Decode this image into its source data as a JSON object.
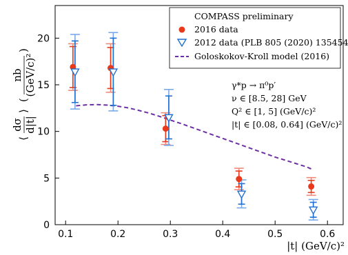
{
  "chart_data": {
    "type": "scatter",
    "xlabel": "|t| (GeV/c)²",
    "ylabel": "⟨dσ/d|t|⟩ ( nb / (GeV/c)² )",
    "xlim": [
      0.08,
      0.63
    ],
    "ylim": [
      0,
      23.5
    ],
    "x_ticks": [
      0.1,
      0.2,
      0.3,
      0.4,
      0.5,
      0.6
    ],
    "x_tick_labels": [
      "0.1",
      "0.2",
      "0.3",
      "0.4",
      "0.5",
      "0.6"
    ],
    "y_ticks": [
      0,
      5,
      10,
      15,
      20
    ],
    "y_tick_labels": [
      "0",
      "5",
      "10",
      "15",
      "20"
    ],
    "grid": false,
    "legend_title": "COMPASS preliminary",
    "legend_position": "top-right",
    "annotations": [
      "γ*p → π⁰p′",
      "ν ∈ [8.5, 28] GeV",
      "Q² ∈ [1, 5] (GeV/c)²",
      "|t| ∈ [0.08, 0.64] (GeV/c)²"
    ],
    "series": [
      {
        "name": "2016 data",
        "marker": "circle",
        "color": "#e8391a",
        "sys_color": "#f08a78",
        "x": [
          0.114,
          0.186,
          0.291,
          0.431,
          0.569
        ],
        "y": [
          16.9,
          16.8,
          10.3,
          4.9,
          4.1
        ],
        "stat_err": [
          2.2,
          2.2,
          1.4,
          0.85,
          0.65
        ],
        "sys_err": [
          2.5,
          2.6,
          1.7,
          1.15,
          0.95
        ]
      },
      {
        "name": "2012 data (PLB 805 (2020) 135454)",
        "marker": "triangle-down",
        "color": "#1f6fd0",
        "sys_color": "#7aa9e8",
        "x": [
          0.118,
          0.191,
          0.297,
          0.436,
          0.573
        ],
        "y": [
          16.4,
          16.4,
          11.5,
          3.3,
          1.6
        ],
        "stat_err": [
          3.3,
          3.6,
          2.3,
          1.1,
          0.8
        ],
        "sys_err": [
          4.0,
          4.2,
          3.0,
          1.5,
          1.1
        ]
      },
      {
        "name": "Goloskokov-Kroll model (2016)",
        "type": "line",
        "style": "dashed",
        "color": "#6b2fa3",
        "x": [
          0.12,
          0.14,
          0.16,
          0.18,
          0.2,
          0.22,
          0.24,
          0.26,
          0.28,
          0.3,
          0.32,
          0.34,
          0.36,
          0.38,
          0.4,
          0.42,
          0.44,
          0.46,
          0.48,
          0.5,
          0.52,
          0.54,
          0.56,
          0.57
        ],
        "y": [
          12.75,
          12.85,
          12.88,
          12.82,
          12.7,
          12.52,
          12.25,
          11.95,
          11.6,
          11.22,
          10.85,
          10.45,
          10.05,
          9.65,
          9.25,
          8.85,
          8.45,
          8.05,
          7.65,
          7.25,
          6.9,
          6.55,
          6.2,
          5.95
        ]
      }
    ]
  }
}
